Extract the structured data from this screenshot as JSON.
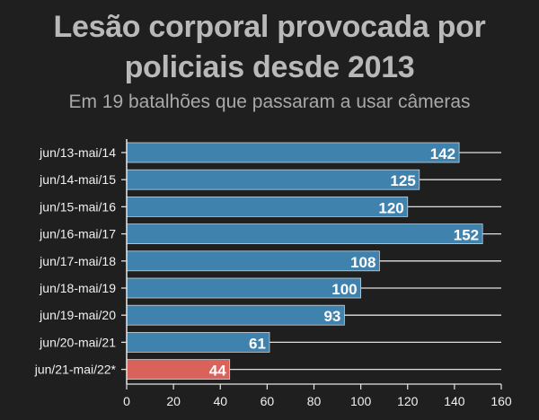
{
  "title_line1": "Lesão corporal provocada por",
  "title_line2": "policiais desde 2013",
  "subtitle": "Em 19 batalhões que passaram a usar câmeras",
  "colors": {
    "bar": "#3f82ad",
    "highlight": "#d9625a",
    "background": "#1f1f1f",
    "grid": "#e0e0e0"
  },
  "chart_data": {
    "type": "bar",
    "orientation": "horizontal",
    "title": "Lesão corporal provocada por policiais desde 2013",
    "subtitle": "Em 19 batalhões que passaram a usar câmeras",
    "categories": [
      "jun/13-mai/14",
      "jun/14-mai/15",
      "jun/15-mai/16",
      "jun/16-mai/17",
      "jun/17-mai/18",
      "jun/18-mai/19",
      "jun/19-mai/20",
      "jun/20-mai/21",
      "jun/21-mai/22*"
    ],
    "values": [
      142,
      125,
      120,
      152,
      108,
      100,
      93,
      61,
      44
    ],
    "highlight_index": 8,
    "xlim": [
      0,
      160
    ],
    "xticks": [
      0,
      20,
      40,
      60,
      80,
      100,
      120,
      140,
      160
    ],
    "grid": "horizontal lines per category",
    "data_labels": true
  }
}
